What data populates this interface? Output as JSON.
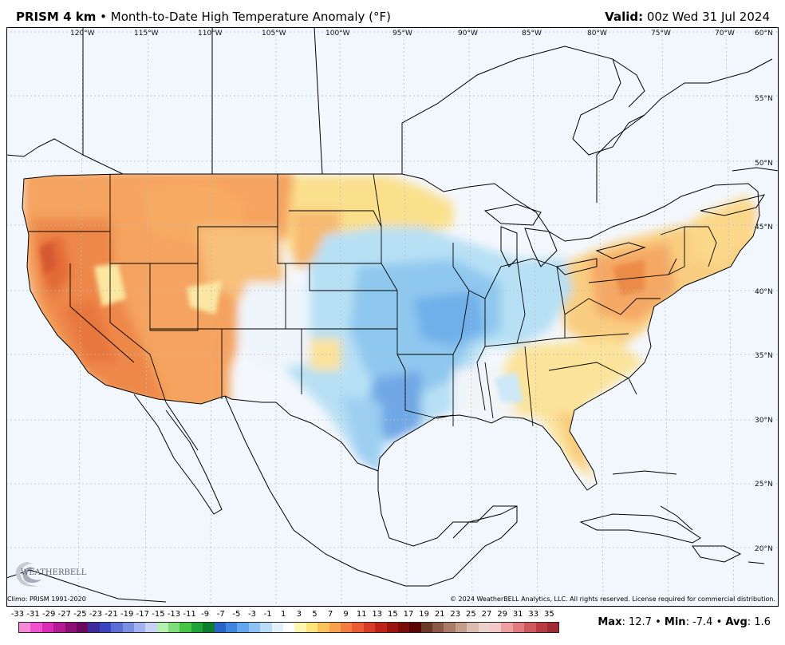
{
  "header": {
    "product": "PRISM 4 km",
    "bullet": "•",
    "description": "Month-to-Date High Temperature Anomaly (°F)",
    "valid_label": "Valid:",
    "valid_value": "00z Wed 31 Jul 2024"
  },
  "map": {
    "lon_labels": [
      "120°W",
      "115°W",
      "110°W",
      "105°W",
      "100°W",
      "95°W",
      "90°W",
      "85°W",
      "80°W",
      "75°W",
      "70°W"
    ],
    "lat_labels": [
      "60°N",
      "55°N",
      "50°N",
      "45°N",
      "40°N",
      "35°N",
      "30°N",
      "25°N",
      "20°N"
    ],
    "logo_text": "WEATHERBELL",
    "colors": {
      "background": "#f2f6fd",
      "warm_anomaly": "#f4a35c",
      "hot_anomaly": "#e76f3e",
      "mild_warm": "#fbe58f",
      "cool_anomaly": "#a9d8f2",
      "cold_anomaly": "#6fb0ea",
      "coast_line": "#000000",
      "grid_line": "#b8bcc4"
    }
  },
  "footer": {
    "climo": "Climo: PRISM 1991-2020",
    "copyright": "© 2024 WeatherBELL Analytics, LLC. All rights reserved. License required for commercial distribution."
  },
  "legend": {
    "tick_labels": [
      "-33",
      "-31",
      "-29",
      "-27",
      "-25",
      "-23",
      "-21",
      "-19",
      "-17",
      "-15",
      "-13",
      "-11",
      "-9",
      "-7",
      "-5",
      "-3",
      "-1",
      "1",
      "3",
      "5",
      "7",
      "9",
      "11",
      "13",
      "15",
      "17",
      "19",
      "21",
      "23",
      "25",
      "27",
      "29",
      "31",
      "33",
      "35"
    ],
    "colors": [
      "#f58ad6",
      "#ee52ce",
      "#d82cb5",
      "#b51a95",
      "#8d0f74",
      "#6a0a5e",
      "#3d2a9e",
      "#3c45c0",
      "#5a6fd4",
      "#7b8fe2",
      "#a3b2ee",
      "#c9d2f4",
      "#b4f0b0",
      "#7edc7a",
      "#46c446",
      "#1ea23a",
      "#0c7d2a",
      "#2a64c8",
      "#3f86e0",
      "#62a6ee",
      "#8cc3f4",
      "#b8dcf8",
      "#e2f0fb",
      "#ffffff",
      "#fff7b0",
      "#fee47a",
      "#fbc25a",
      "#f7a04e",
      "#f27d42",
      "#e95c33",
      "#d73d26",
      "#bd2318",
      "#9c1410",
      "#7a0c0a",
      "#5a0606",
      "#6b3a2a",
      "#8a5a46",
      "#a87c68",
      "#c49d8c",
      "#dcbdb1",
      "#ecd3cc",
      "#f3c8c8",
      "#ee9fa3",
      "#e17b82",
      "#cf5862",
      "#b93a44",
      "#9e2a33"
    ],
    "stats": {
      "max_label": "Max",
      "max_value": "12.7",
      "min_label": "Min",
      "min_value": "-7.4",
      "avg_label": "Avg",
      "avg_value": "1.6"
    }
  }
}
